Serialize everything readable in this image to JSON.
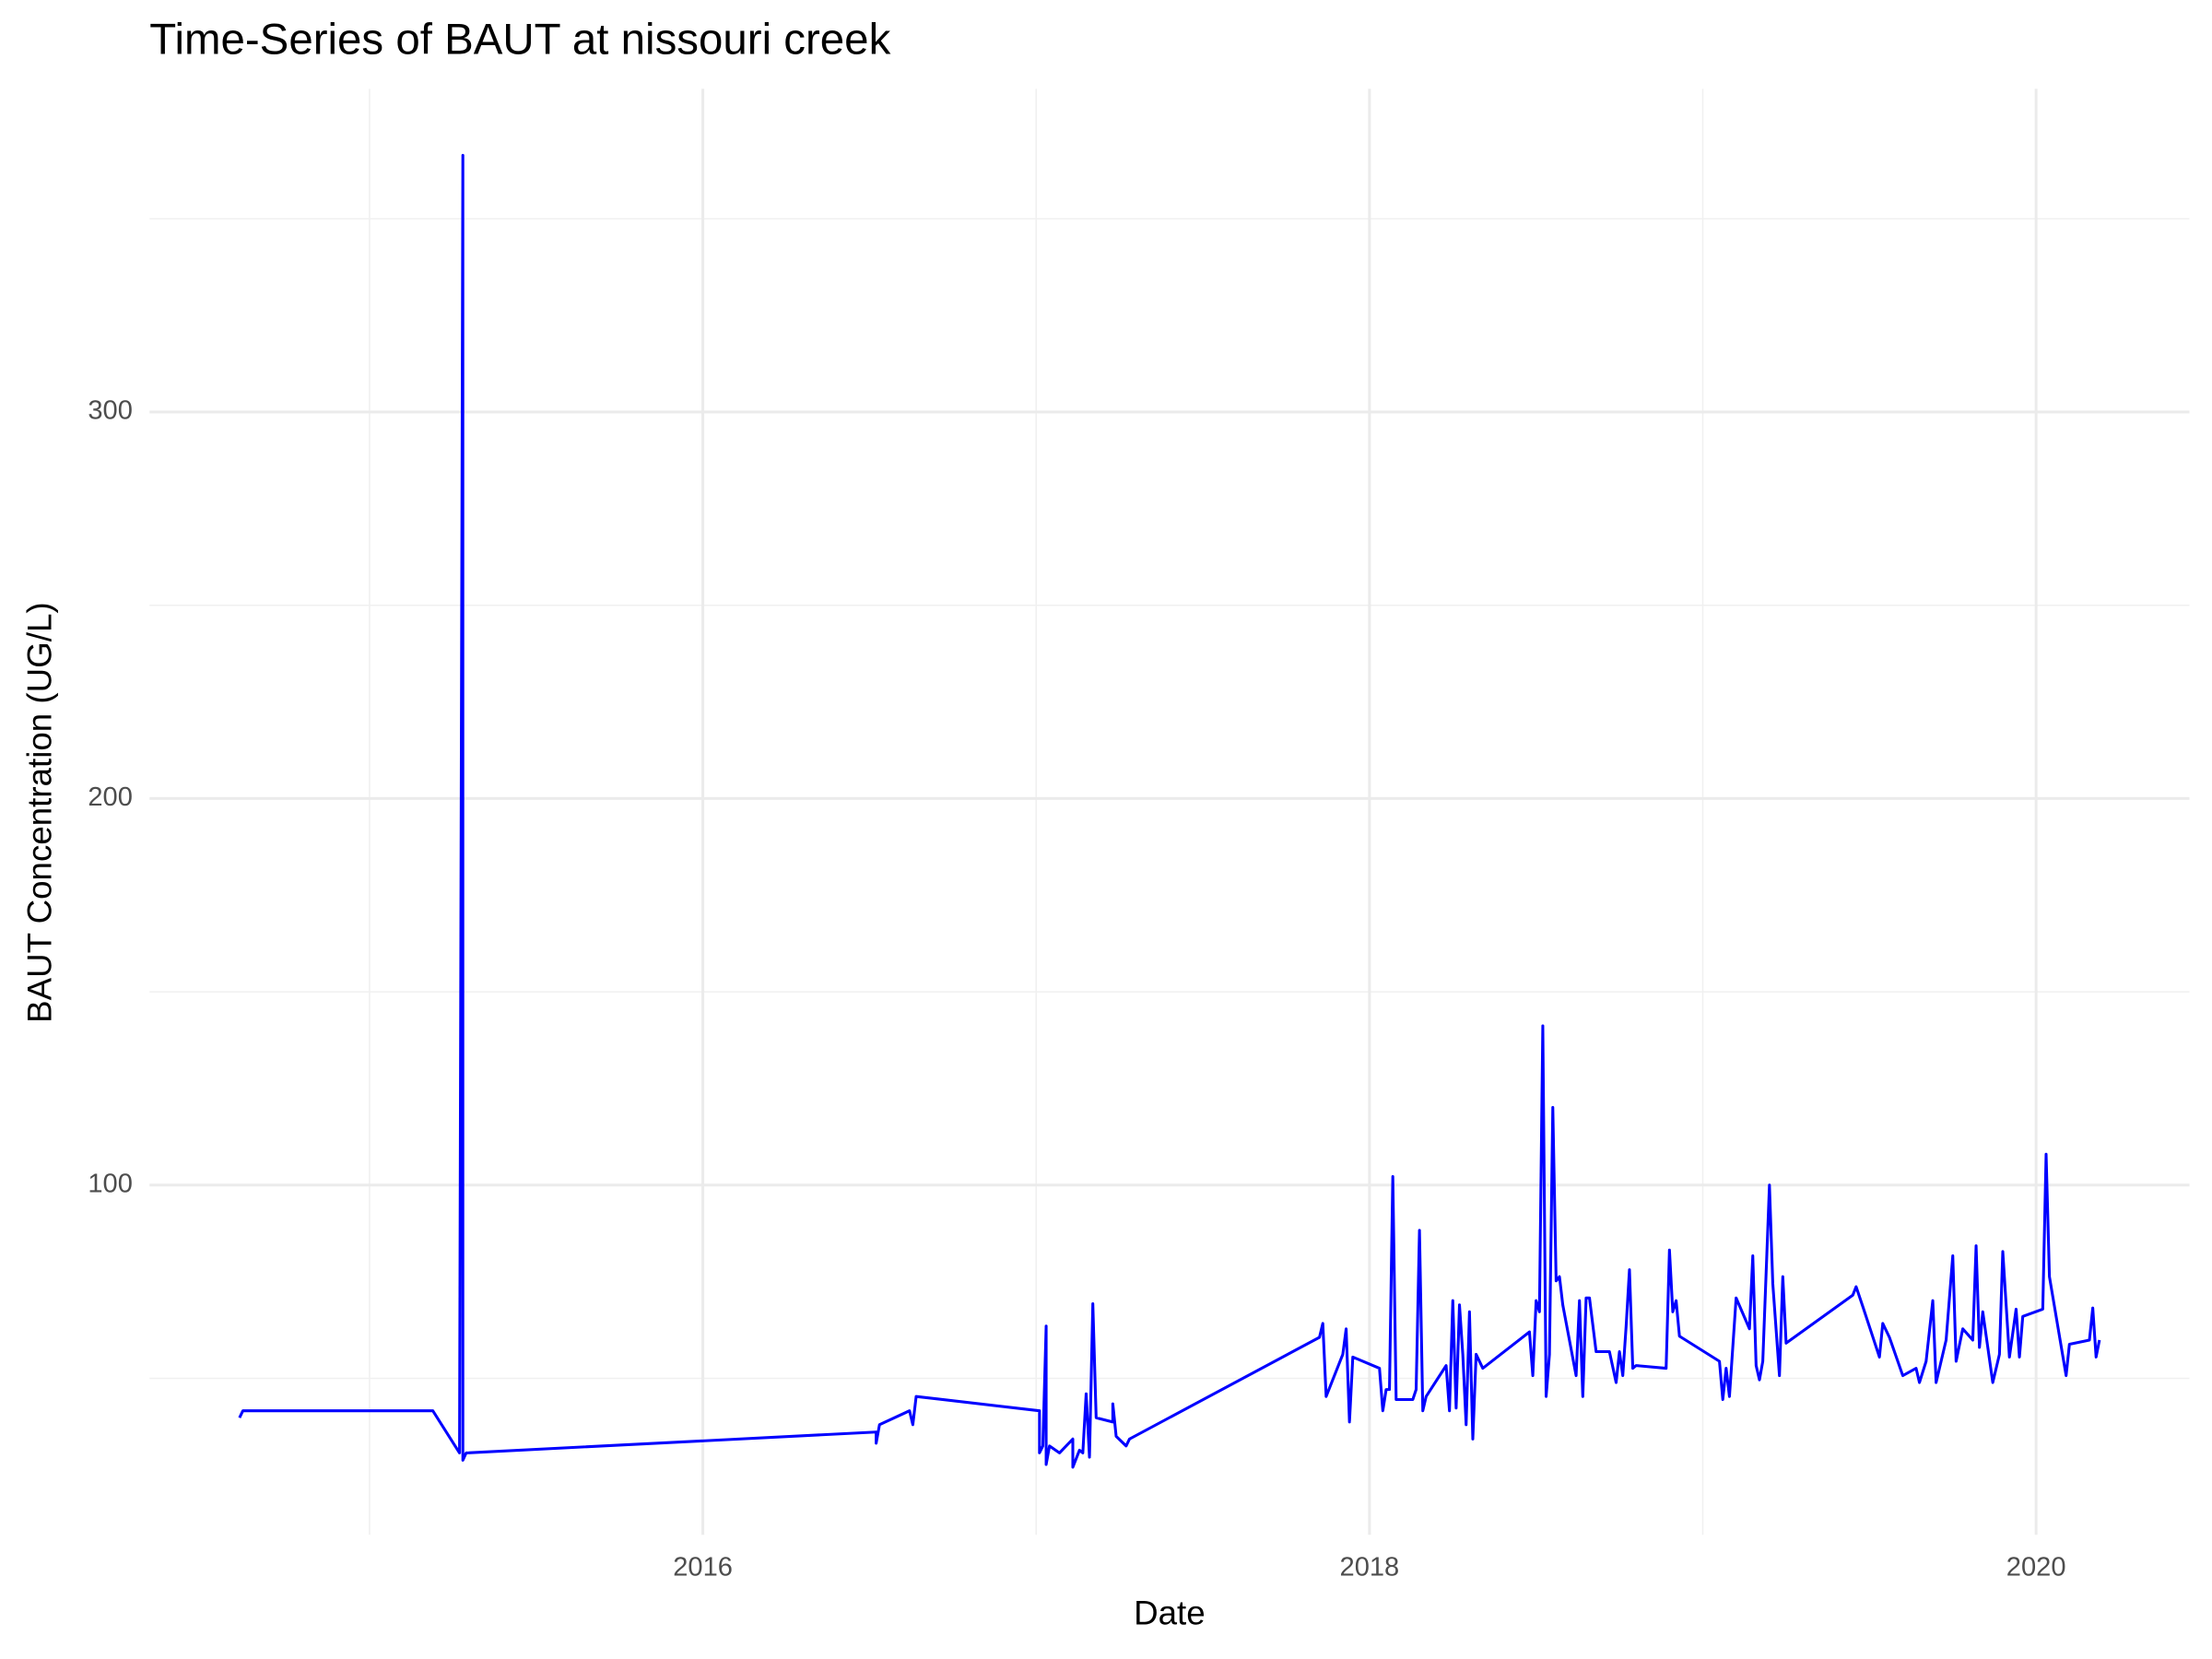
{
  "chart_data": {
    "type": "line",
    "title": "Time-Series of BAUT at nissouri creek",
    "x_label": "Date",
    "y_label": "BAUT Concentration (UG/L)",
    "grid": true,
    "xlim": [
      2014.34,
      2020.46
    ],
    "xticks": [
      2016,
      2018,
      2020
    ],
    "ylim": [
      9.5,
      383.6
    ],
    "yticks": [
      100,
      200,
      300
    ],
    "x": [
      2014.61,
      2014.62,
      2015.19,
      2015.27,
      2015.28,
      2015.28,
      2015.29,
      2016.52,
      2016.52,
      2016.53,
      2016.62,
      2016.63,
      2016.64,
      2017.01,
      2017.01,
      2017.02,
      2017.03,
      2017.03,
      2017.04,
      2017.07,
      2017.11,
      2017.11,
      2017.13,
      2017.14,
      2017.15,
      2017.16,
      2017.17,
      2017.18,
      2017.23,
      2017.23,
      2017.24,
      2017.27,
      2017.28,
      2017.85,
      2017.86,
      2017.87,
      2017.92,
      2017.93,
      2017.94,
      2017.95,
      2018.03,
      2018.04,
      2018.05,
      2018.06,
      2018.07,
      2018.08,
      2018.13,
      2018.14,
      2018.15,
      2018.16,
      2018.17,
      2018.23,
      2018.24,
      2018.25,
      2018.26,
      2018.27,
      2018.28,
      2018.29,
      2018.3,
      2018.31,
      2018.32,
      2018.34,
      2018.48,
      2018.49,
      2018.5,
      2018.51,
      2018.52,
      2018.53,
      2018.54,
      2018.55,
      2018.56,
      2018.57,
      2018.58,
      2018.62,
      2018.63,
      2018.64,
      2018.65,
      2018.66,
      2018.68,
      2018.72,
      2018.74,
      2018.75,
      2018.76,
      2018.77,
      2018.78,
      2018.79,
      2018.8,
      2018.89,
      2018.9,
      2018.91,
      2018.92,
      2018.93,
      2019.05,
      2019.06,
      2019.07,
      2019.08,
      2019.1,
      2019.14,
      2019.15,
      2019.16,
      2019.17,
      2019.18,
      2019.2,
      2019.21,
      2019.23,
      2019.24,
      2019.25,
      2019.45,
      2019.46,
      2019.48,
      2019.53,
      2019.54,
      2019.56,
      2019.6,
      2019.64,
      2019.65,
      2019.67,
      2019.69,
      2019.7,
      2019.73,
      2019.75,
      2019.76,
      2019.78,
      2019.81,
      2019.82,
      2019.83,
      2019.84,
      2019.87,
      2019.89,
      2019.9,
      2019.92,
      2019.94,
      2019.95,
      2019.96,
      2020.02,
      2020.03,
      2020.04,
      2020.09,
      2020.1,
      2020.16,
      2020.17,
      2020.18,
      2020.19
    ],
    "series": [
      {
        "name": "BAUT",
        "color": "#0000ff",
        "values": [
          39.8,
          41.6,
          41.6,
          30.7,
          366.4,
          28.8,
          30.7,
          36.1,
          33.2,
          38.0,
          41.6,
          38.0,
          45.3,
          41.6,
          30.7,
          32.5,
          63.5,
          27.7,
          32.5,
          30.7,
          34.3,
          27.0,
          31.4,
          30.7,
          46.0,
          29.6,
          69.3,
          39.8,
          38.7,
          43.4,
          35.0,
          32.5,
          34.3,
          60.6,
          64.2,
          45.3,
          56.2,
          62.8,
          38.7,
          55.5,
          52.6,
          41.6,
          47.1,
          47.1,
          102.2,
          44.5,
          44.5,
          47.1,
          88.3,
          41.6,
          45.3,
          53.3,
          41.6,
          70.1,
          42.3,
          69.0,
          56.2,
          38.0,
          67.2,
          34.3,
          56.2,
          52.6,
          62.0,
          50.7,
          70.1,
          67.2,
          141.2,
          45.3,
          56.2,
          120.1,
          75.2,
          76.3,
          69.0,
          50.7,
          70.1,
          45.3,
          70.8,
          70.8,
          56.9,
          56.9,
          48.9,
          56.9,
          50.7,
          63.5,
          78.1,
          52.6,
          53.3,
          52.6,
          83.2,
          67.2,
          70.1,
          60.9,
          54.4,
          44.5,
          52.6,
          45.3,
          70.8,
          62.8,
          81.7,
          53.3,
          49.6,
          54.4,
          100.0,
          74.5,
          50.7,
          76.3,
          59.1,
          71.5,
          73.7,
          68.6,
          55.5,
          64.2,
          60.6,
          50.7,
          52.6,
          48.9,
          54.4,
          70.1,
          48.9,
          59.9,
          81.7,
          54.4,
          62.8,
          59.9,
          84.3,
          58.0,
          67.2,
          48.9,
          56.2,
          82.8,
          55.5,
          67.9,
          55.5,
          66.0,
          67.9,
          108.0,
          76.3,
          50.7,
          58.8,
          59.9,
          68.2,
          55.5,
          59.9
        ]
      }
    ]
  }
}
